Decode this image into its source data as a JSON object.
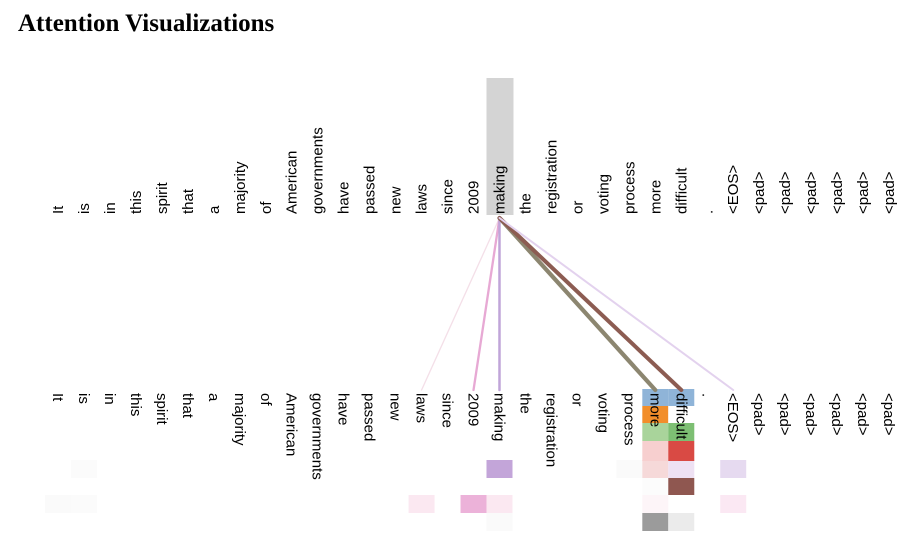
{
  "title": "Attention Visualizations",
  "tokens": [
    "It",
    "is",
    "in",
    "this",
    "spirit",
    "that",
    "a",
    "majority",
    "of",
    "American",
    "governments",
    "have",
    "passed",
    "new",
    "laws",
    "since",
    "2009",
    "making",
    "the",
    "registration",
    "or",
    "voting",
    "process",
    "more",
    "difficult",
    ".",
    "<EOS>",
    "<pad>",
    "<pad>",
    "<pad>",
    "<pad>",
    "<pad>",
    "<pad>"
  ],
  "focus_token_index": 17,
  "colors": {
    "highlight": "#d4d4d4",
    "more_head_stack": [
      "#8fb4d8",
      "#f28e2b",
      "#a9d49b",
      "#f7cfcf"
    ],
    "difficult_head_stack": [
      "#8fb4d8",
      "#ffffff",
      "#7dbf73",
      "#d94a44"
    ]
  },
  "attention_lines": [
    {
      "target": 14,
      "color": "#f4dfe8",
      "weight": 0.15
    },
    {
      "target": 16,
      "color": "#e7a9d4",
      "weight": 0.45
    },
    {
      "target": 17,
      "color": "#c0a5d8",
      "weight": 0.5
    },
    {
      "target": 23,
      "color": "#8c8670",
      "weight": 1.0
    },
    {
      "target": 24,
      "color": "#8c5c52",
      "weight": 0.95
    },
    {
      "target": 26,
      "color": "#e3d2ee",
      "weight": 0.35
    }
  ],
  "heat_rows": [
    [
      {
        "i": 1,
        "c": "#fbfbfb"
      },
      {
        "i": 17,
        "c": "#c3a5d9"
      },
      {
        "i": 22,
        "c": "#fafafa"
      },
      {
        "i": 23,
        "c": "#f6d9d9"
      },
      {
        "i": 24,
        "c": "#eee1f3"
      },
      {
        "i": 26,
        "c": "#e6daf0"
      }
    ],
    [
      {
        "i": 23,
        "c": "#fcfcfc"
      },
      {
        "i": 24,
        "c": "#8f5750"
      }
    ],
    [
      {
        "i": 0,
        "c": "#fafafa"
      },
      {
        "i": 1,
        "c": "#fbfbfb"
      },
      {
        "i": 14,
        "c": "#fbe8f1"
      },
      {
        "i": 16,
        "c": "#ecb2d9"
      },
      {
        "i": 17,
        "c": "#fbe8f1"
      },
      {
        "i": 23,
        "c": "#fdf5f8"
      },
      {
        "i": 26,
        "c": "#fbe8f3"
      }
    ],
    [
      {
        "i": 17,
        "c": "#fafafa"
      },
      {
        "i": 23,
        "c": "#9b9b9b"
      },
      {
        "i": 24,
        "c": "#ebebeb"
      }
    ]
  ]
}
